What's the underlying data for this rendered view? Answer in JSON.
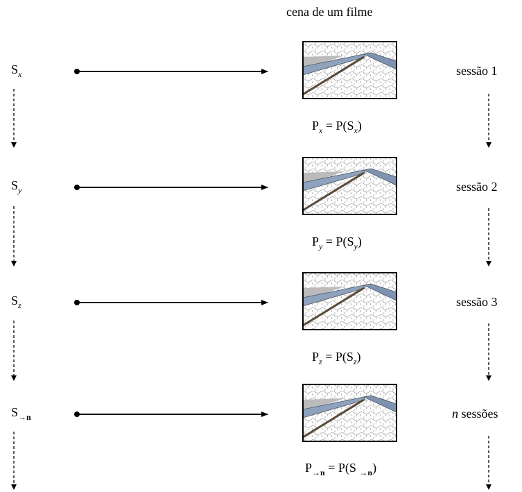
{
  "title": "cena de um filme",
  "rows": [
    {
      "state": [
        "S",
        "x"
      ],
      "formula": [
        "P",
        "x",
        " = P(S",
        "x",
        ")"
      ],
      "session": "sessão 1"
    },
    {
      "state": [
        "S",
        "y"
      ],
      "formula": [
        "P",
        "y",
        " = P(S",
        "y",
        ")"
      ],
      "session": "sessão 2"
    },
    {
      "state": [
        "S",
        "z"
      ],
      "formula": [
        "P",
        "z",
        " = P(S",
        "z",
        ")"
      ],
      "session": "sessão 3"
    },
    {
      "state": [
        "S",
        "→n"
      ],
      "formula": [
        "P",
        "→n",
        " = P(S ",
        "→n",
        ")"
      ],
      "session_var": "n",
      "session": "sessões"
    }
  ]
}
